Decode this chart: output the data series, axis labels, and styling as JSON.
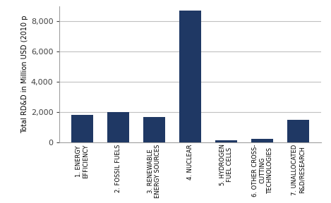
{
  "categories": [
    "1. ENERGY\nEFFICIENCY",
    "2. FOSSIL FUELS",
    "3. RENEWABLE\nENERGY SOURCES",
    "4. NUCLEAR",
    "5. HYDROGEN\nFUEL CELLS",
    "6. OTHER CROSS-\nCUTTING\nTECHNOLOGIES",
    "7. UNALLOCATED\nR&D/RESEARCH"
  ],
  "values": [
    1800,
    1980,
    1680,
    8700,
    130,
    220,
    1480
  ],
  "bar_color": "#1F3864",
  "ylabel": "Total RD&D in Million USD (2010 p",
  "ylim": [
    0,
    9000
  ],
  "yticks": [
    0,
    2000,
    4000,
    6000,
    8000
  ],
  "background_color": "#ffffff",
  "grid_color": "#c0c0c0",
  "figsize": [
    4.69,
    2.88
  ],
  "dpi": 100
}
